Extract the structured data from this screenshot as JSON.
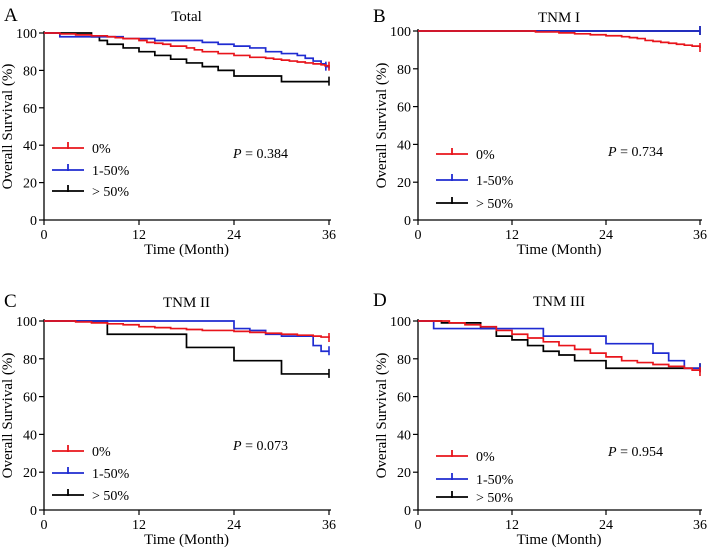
{
  "chart_data": [
    {
      "type": "line",
      "subtype": "kaplan-meier",
      "panel_label": "A",
      "title": "Total",
      "xlabel": "Time (Month)",
      "ylabel": "Overall Survival (%)",
      "xlim": [
        0,
        36
      ],
      "ylim": [
        0,
        100
      ],
      "xticks": [
        0,
        12,
        24,
        36
      ],
      "yticks": [
        0,
        20,
        40,
        60,
        80,
        100
      ],
      "p_label": "P",
      "p_value": "= 0.384",
      "legend_position": "bottom-left",
      "series": [
        {
          "name": "0%",
          "color": "#e8141b",
          "x": [
            0,
            2,
            4,
            6,
            8,
            9,
            10,
            12,
            13,
            14,
            15,
            16,
            18,
            19,
            20,
            22,
            24,
            26,
            28,
            29,
            30,
            31,
            32,
            33,
            34,
            35,
            35.5,
            36
          ],
          "y": [
            100,
            99.5,
            99,
            98.5,
            98,
            97.5,
            97,
            96,
            95,
            94.5,
            94,
            93,
            92,
            91,
            90,
            89,
            88,
            87,
            86.5,
            86,
            85.5,
            85,
            84.5,
            84,
            83.5,
            83,
            82.5,
            82
          ],
          "censor_x": [
            36
          ]
        },
        {
          "name": "1-50%",
          "color": "#1f2bd1",
          "x": [
            0,
            2,
            8,
            10,
            14,
            20,
            22,
            24,
            26,
            28,
            30,
            32,
            33,
            34,
            35,
            35.6,
            36
          ],
          "y": [
            100,
            98,
            98,
            97,
            96,
            95,
            94,
            93,
            92,
            90,
            89,
            88,
            86.5,
            85,
            83.5,
            82,
            81
          ],
          "censor_x": [
            35.6
          ]
        },
        {
          "name": "> 50%",
          "color": "#000000",
          "x": [
            0,
            6,
            7,
            8,
            10,
            12,
            14,
            16,
            18,
            20,
            22,
            24,
            28,
            30,
            32,
            35,
            36
          ],
          "y": [
            100,
            98,
            96,
            94,
            92,
            90,
            88,
            86,
            84,
            82,
            80,
            77,
            77,
            74,
            74,
            74,
            74
          ],
          "censor_x": [
            36
          ]
        }
      ]
    },
    {
      "type": "line",
      "subtype": "kaplan-meier",
      "panel_label": "B",
      "title": "TNM I",
      "xlabel": "Time (Month)",
      "ylabel": "Overall Survival (%)",
      "xlim": [
        0,
        36
      ],
      "ylim": [
        0,
        100
      ],
      "xticks": [
        0,
        12,
        24,
        36
      ],
      "yticks": [
        0,
        20,
        40,
        60,
        80,
        100
      ],
      "p_label": "P",
      "p_value": "= 0.734",
      "legend_position": "bottom-left",
      "series": [
        {
          "name": "0%",
          "color": "#e8141b",
          "x": [
            0,
            15,
            18,
            20,
            22,
            24,
            26,
            27,
            28,
            29,
            30,
            31,
            32,
            33,
            34,
            35,
            36
          ],
          "y": [
            100,
            99.5,
            99,
            98.5,
            98,
            97.5,
            97,
            96.5,
            96,
            95,
            94.5,
            94,
            93.5,
            93,
            92.5,
            92,
            91
          ],
          "censor_x": [
            36
          ]
        },
        {
          "name": "1-50%",
          "color": "#1f2bd1",
          "x": [
            0,
            36
          ],
          "y": [
            100,
            100
          ],
          "censor_x": [
            36
          ]
        },
        {
          "name": "> 50%",
          "color": "#000000",
          "x": [
            0,
            36
          ],
          "y": [
            100,
            100
          ],
          "censor_x": [
            36
          ]
        }
      ]
    },
    {
      "type": "line",
      "subtype": "kaplan-meier",
      "panel_label": "C",
      "title": "TNM II",
      "xlabel": "Time (Month)",
      "ylabel": "Overall Survival (%)",
      "xlim": [
        0,
        36
      ],
      "ylim": [
        0,
        100
      ],
      "xticks": [
        0,
        12,
        24,
        36
      ],
      "yticks": [
        0,
        20,
        40,
        60,
        80,
        100
      ],
      "p_label": "P",
      "p_value": "= 0.073",
      "legend_position": "bottom-left",
      "series": [
        {
          "name": "0%",
          "color": "#e8141b",
          "x": [
            0,
            4,
            6,
            8,
            10,
            12,
            14,
            16,
            18,
            20,
            22,
            24,
            26,
            28,
            30,
            32,
            34,
            35,
            36
          ],
          "y": [
            100,
            99.5,
            99,
            98.5,
            98,
            97,
            96.5,
            96,
            95.5,
            95,
            95,
            94.5,
            94,
            93.5,
            93,
            92.5,
            92,
            91.5,
            91
          ],
          "censor_x": [
            36
          ]
        },
        {
          "name": "1-50%",
          "color": "#1f2bd1",
          "x": [
            0,
            24,
            26,
            28,
            30,
            33,
            34,
            35,
            36
          ],
          "y": [
            100,
            96,
            95,
            93,
            92,
            92,
            87,
            84,
            84
          ],
          "censor_x": [
            36
          ]
        },
        {
          "name": "> 50%",
          "color": "#000000",
          "x": [
            0,
            8,
            12,
            18,
            24,
            30,
            36
          ],
          "y": [
            100,
            93,
            93,
            86,
            79,
            72,
            72
          ],
          "censor_x": [
            36
          ]
        }
      ]
    },
    {
      "type": "line",
      "subtype": "kaplan-meier",
      "panel_label": "D",
      "title": "TNM III",
      "xlabel": "Time (Month)",
      "ylabel": "Overall Survival (%)",
      "xlim": [
        0,
        36
      ],
      "ylim": [
        0,
        100
      ],
      "xticks": [
        0,
        12,
        24,
        36
      ],
      "yticks": [
        0,
        20,
        40,
        60,
        80,
        100
      ],
      "p_label": "P",
      "p_value": "= 0.954",
      "legend_position": "bottom-left",
      "series": [
        {
          "name": "0%",
          "color": "#e8141b",
          "x": [
            0,
            4,
            6,
            8,
            10,
            12,
            14,
            16,
            18,
            20,
            22,
            24,
            26,
            28,
            30,
            32,
            34,
            35,
            36
          ],
          "y": [
            100,
            99,
            98,
            97,
            95,
            93,
            91,
            89,
            87,
            85,
            83,
            81,
            79,
            78,
            77,
            76,
            75,
            74,
            73
          ],
          "censor_x": [
            36
          ]
        },
        {
          "name": "1-50%",
          "color": "#1f2bd1",
          "x": [
            0,
            2,
            8,
            12,
            16,
            20,
            24,
            28,
            30,
            32,
            34,
            36
          ],
          "y": [
            100,
            96,
            96,
            96,
            92,
            92,
            88,
            88,
            83,
            79,
            75,
            75
          ],
          "censor_x": [
            36
          ]
        },
        {
          "name": "> 50%",
          "color": "#000000",
          "x": [
            0,
            3,
            8,
            10,
            12,
            14,
            16,
            18,
            20,
            24,
            30,
            36
          ],
          "y": [
            100,
            99,
            96,
            92,
            90,
            87,
            84,
            82,
            79,
            75,
            75,
            75
          ],
          "censor_x": [
            36
          ]
        }
      ]
    }
  ]
}
